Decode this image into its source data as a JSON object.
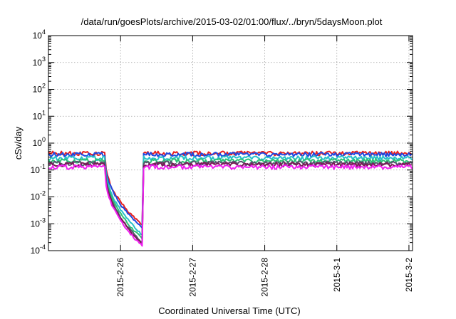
{
  "chart_data": {
    "type": "line",
    "title": "/data/run/goesPlots/archive/2015-03-02/01:00/flux/../bryn/5daysMoon.plot",
    "xlabel": "Coordinated Universal Time (UTC)",
    "ylabel": "cSv/day",
    "yscale": "log",
    "ylim": [
      0.0001,
      10000
    ],
    "xlim": [
      1.0,
      6.05
    ],
    "grid": true,
    "y_ticks": [
      {
        "value": 0.0001,
        "mantissa": "10",
        "exp": "-4"
      },
      {
        "value": 0.001,
        "mantissa": "10",
        "exp": "-3"
      },
      {
        "value": 0.01,
        "mantissa": "10",
        "exp": "-2"
      },
      {
        "value": 0.1,
        "mantissa": "10",
        "exp": "-1"
      },
      {
        "value": 1,
        "mantissa": "10",
        "exp": "0"
      },
      {
        "value": 10,
        "mantissa": "10",
        "exp": "1"
      },
      {
        "value": 100,
        "mantissa": "10",
        "exp": "2"
      },
      {
        "value": 1000,
        "mantissa": "10",
        "exp": "3"
      },
      {
        "value": 10000,
        "mantissa": "10",
        "exp": "4"
      }
    ],
    "x_ticks": [
      {
        "value": 2,
        "label": "2015-2-26"
      },
      {
        "value": 3,
        "label": "2015-2-27"
      },
      {
        "value": 4,
        "label": "2015-2-28"
      },
      {
        "value": 5,
        "label": "2015-3-1"
      },
      {
        "value": 6,
        "label": "2015-3-2"
      }
    ],
    "series": [
      {
        "color": "#e8201f",
        "baseline": 0.42,
        "dip_end": 0.0009
      },
      {
        "color": "#1f47e0",
        "baseline": 0.38,
        "dip_end": 0.0007
      },
      {
        "color": "#27c0c9",
        "baseline": 0.28,
        "dip_end": 0.0004
      },
      {
        "color": "#2cc276",
        "baseline": 0.22,
        "dip_end": 0.00028
      },
      {
        "color": "#55556e",
        "baseline": 0.18,
        "dip_end": 0.0002
      },
      {
        "color": "#7a1a55",
        "baseline": 0.16,
        "dip_end": 0.00018
      },
      {
        "color": "#f01ff0",
        "baseline": 0.13,
        "dip_end": 0.00015
      }
    ],
    "segments": {
      "dip_start": 1.78,
      "dip_end": 2.3,
      "recover": 2.32
    }
  }
}
